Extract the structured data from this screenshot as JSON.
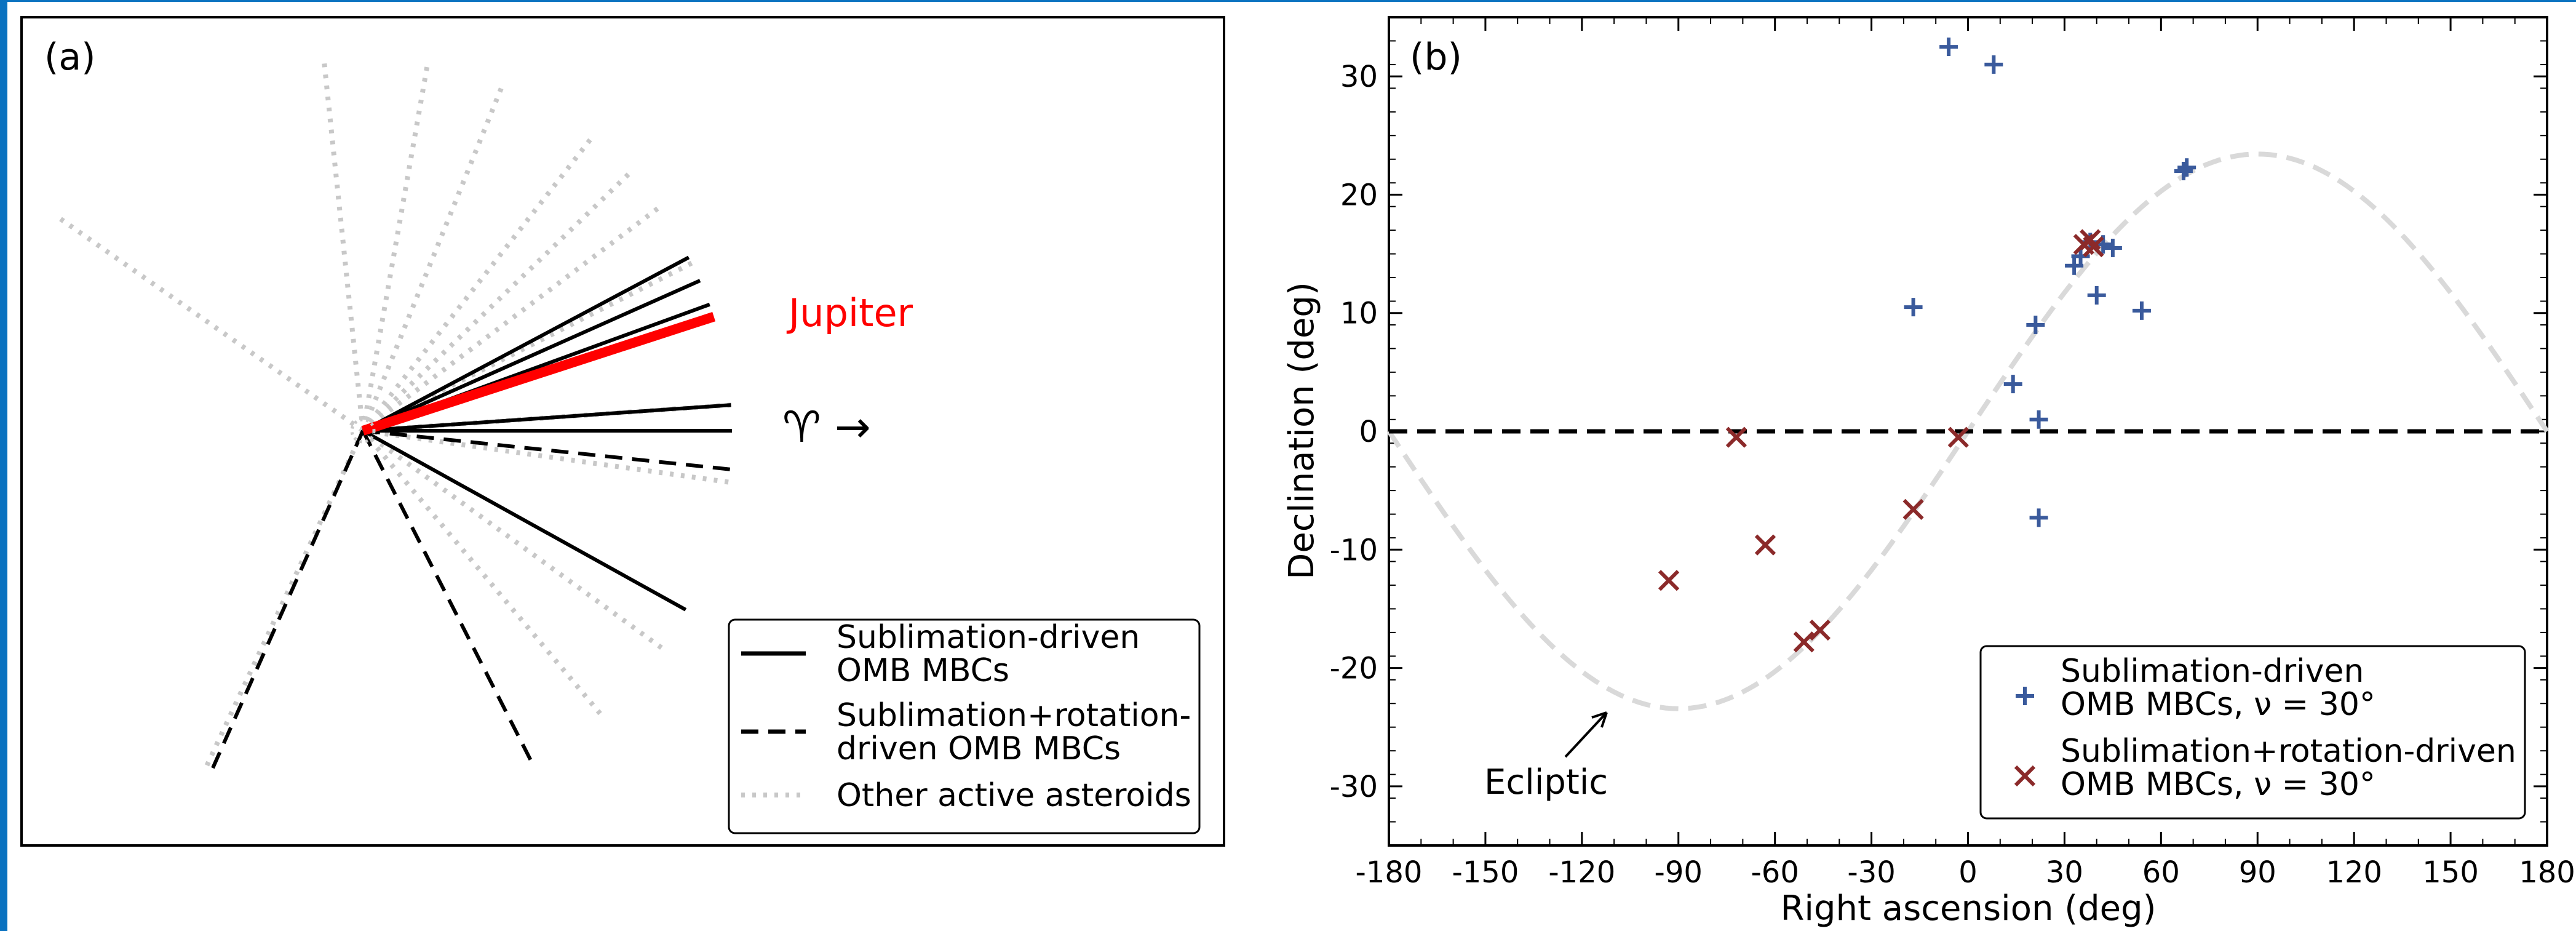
{
  "chart_data": [
    {
      "panel": "(a)",
      "type": "line",
      "description_labels": {
        "jupiter": "Jupiter",
        "aries": "♈ →"
      },
      "colors": {
        "solid": "#000000",
        "dashed": "#000000",
        "dotted": "#c8c8c8",
        "jupiter": "#ff0000"
      },
      "series": [
        {
          "name": "Sublimation-driven OMB MBCs",
          "style": "solid",
          "directions_deg": [
            28,
            24,
            20,
            4,
            0,
            -29
          ]
        },
        {
          "name": "Sublimation+rotation-driven OMB MBCs",
          "style": "dashed",
          "directions_deg": [
            -6,
            -114,
            -63
          ]
        },
        {
          "name": "Other active asteroids",
          "style": "dotted",
          "directions_deg": [
            145,
            96,
            80,
            68,
            52,
            44,
            37,
            27,
            4,
            -8,
            -36,
            -50,
            -115
          ]
        },
        {
          "name": "Jupiter",
          "style": "thick-red",
          "directions_deg": [
            18
          ]
        }
      ],
      "legend": {
        "position": "lower-right",
        "entries": [
          {
            "style": "solid",
            "lines": [
              "Sublimation-driven",
              " OMB MBCs"
            ]
          },
          {
            "style": "dashed",
            "lines": [
              "Sublimation+rotation-",
              " driven OMB MBCs"
            ]
          },
          {
            "style": "dotted",
            "lines": [
              "Other active asteroids"
            ]
          }
        ]
      }
    },
    {
      "panel": "(b)",
      "type": "scatter",
      "xlabel": "Right ascension (deg)",
      "ylabel": "Declination (deg)",
      "xlim": [
        -180,
        180
      ],
      "ylim": [
        -35,
        35
      ],
      "xticks": [
        -180,
        -150,
        -120,
        -90,
        -60,
        -30,
        0,
        30,
        60,
        90,
        120,
        150,
        180
      ],
      "yticks": [
        -30,
        -20,
        -10,
        0,
        10,
        20,
        30
      ],
      "grid": false,
      "reference_lines": [
        {
          "name": "Ecliptic",
          "shape": "sine",
          "amplitude_deg": 23.44,
          "color": "#d9d9d9",
          "style": "dashed"
        },
        {
          "shape": "horizontal",
          "y": 0,
          "color": "#000000",
          "style": "dashed"
        }
      ],
      "annotations": [
        {
          "text": "Ecliptic"
        }
      ],
      "series": [
        {
          "name": "Sublimation-driven OMB MBCs, ν = 30°",
          "marker": "+",
          "color": "#3a5a9c",
          "points": [
            [
              -6,
              32.5
            ],
            [
              8,
              31
            ],
            [
              -17,
              10.5
            ],
            [
              14,
              4
            ],
            [
              21,
              9
            ],
            [
              22,
              1
            ],
            [
              22,
              -7.3
            ],
            [
              33,
              14
            ],
            [
              35,
              14.8
            ],
            [
              40,
              11.5
            ],
            [
              42,
              15.8
            ],
            [
              45,
              15.5
            ],
            [
              54,
              10.2
            ],
            [
              67,
              22
            ],
            [
              68,
              22.3
            ],
            [
              38,
              16
            ]
          ]
        },
        {
          "name": "Sublimation+rotation-driven OMB MBCs, ν = 30°",
          "marker": "x",
          "color": "#8b2a2a",
          "points": [
            [
              -72,
              -0.5
            ],
            [
              -63,
              -9.6
            ],
            [
              -93,
              -12.6
            ],
            [
              -17,
              -6.6
            ],
            [
              -3,
              -0.5
            ],
            [
              -51,
              -17.8
            ],
            [
              -46,
              -16.8
            ],
            [
              36,
              15.8
            ],
            [
              38,
              16.2
            ],
            [
              39,
              15.6
            ]
          ]
        }
      ],
      "legend": {
        "position": "lower-right",
        "entries": [
          {
            "marker": "+",
            "lines": [
              "Sublimation-driven",
              " OMB MBCs, ν = 30°"
            ]
          },
          {
            "marker": "x",
            "lines": [
              "Sublimation+rotation-driven",
              " OMB MBCs, ν = 30°"
            ]
          }
        ]
      }
    }
  ]
}
